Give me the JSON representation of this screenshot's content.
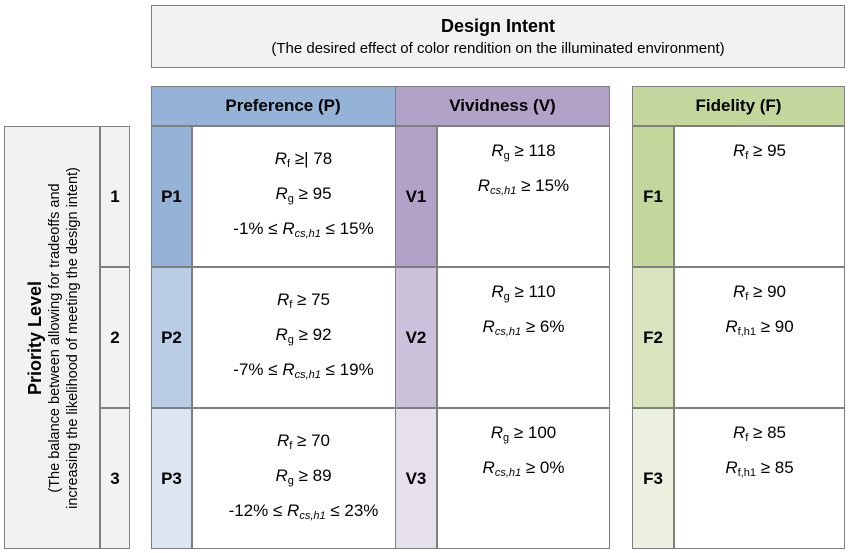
{
  "design_intent": {
    "title": "Design Intent",
    "subtitle": "(The desired effect of color rendition on the illuminated environment)"
  },
  "priority": {
    "title": "Priority Level",
    "subtitle_line1": "(The balance between allowing for tradeoffs and",
    "subtitle_line2": "increasing the likelihood of meeting the design intent)",
    "levels": [
      "1",
      "2",
      "3"
    ]
  },
  "colors": {
    "preference_header": "#95b3d7",
    "vividness_header": "#b3a2c7",
    "fidelity_header": "#c3d69b",
    "P1": "#95b3d7",
    "P2": "#b9cde5",
    "P3": "#dce6f2",
    "V1": "#b3a2c7",
    "V2": "#ccc1da",
    "V3": "#e6e0ec",
    "F1": "#c3d69b",
    "F2": "#d7e4bd",
    "F3": "#ebf1de"
  },
  "columns": [
    {
      "name": "Preference (P)",
      "rows": [
        {
          "code": "P1",
          "lines": [
            {
              "sym": "R",
              "sub": "f",
              "italic_sub": false,
              "rest": " ≥| 78"
            },
            {
              "sym": "R",
              "sub": "g",
              "italic_sub": false,
              "rest": " ≥ 95"
            },
            {
              "pre": "-1% ≤ ",
              "sym": "R",
              "sub": "cs,h1",
              "italic_sub": true,
              "rest": " ≤ 15%"
            }
          ]
        },
        {
          "code": "P2",
          "lines": [
            {
              "sym": "R",
              "sub": "f",
              "italic_sub": false,
              "rest": " ≥ 75"
            },
            {
              "sym": "R",
              "sub": "g",
              "italic_sub": false,
              "rest": " ≥ 92"
            },
            {
              "pre": "-7% ≤ ",
              "sym": "R",
              "sub": "cs,h1",
              "italic_sub": true,
              "rest": " ≤ 19%"
            }
          ]
        },
        {
          "code": "P3",
          "lines": [
            {
              "sym": "R",
              "sub": "f",
              "italic_sub": false,
              "rest": " ≥ 70"
            },
            {
              "sym": "R",
              "sub": "g",
              "italic_sub": false,
              "rest": " ≥ 89"
            },
            {
              "pre": "-12% ≤ ",
              "sym": "R",
              "sub": "cs,h1",
              "italic_sub": true,
              "rest": " ≤ 23%"
            }
          ]
        }
      ]
    },
    {
      "name": "Vividness (V)",
      "rows": [
        {
          "code": "V1",
          "lines": [
            {
              "sym": "R",
              "sub": "g",
              "italic_sub": false,
              "rest": " ≥ 118"
            },
            {
              "sym": "R",
              "sub": "cs,h1",
              "italic_sub": true,
              "rest": " ≥ 15%"
            }
          ]
        },
        {
          "code": "V2",
          "lines": [
            {
              "sym": "R",
              "sub": "g",
              "italic_sub": false,
              "rest": " ≥ 110"
            },
            {
              "sym": "R",
              "sub": "cs,h1",
              "italic_sub": true,
              "rest": " ≥ 6%"
            }
          ]
        },
        {
          "code": "V3",
          "lines": [
            {
              "sym": "R",
              "sub": "g",
              "italic_sub": false,
              "rest": " ≥ 100"
            },
            {
              "sym": "R",
              "sub": "cs,h1",
              "italic_sub": true,
              "rest": " ≥ 0%"
            }
          ]
        }
      ]
    },
    {
      "name": "Fidelity (F)",
      "rows": [
        {
          "code": "F1",
          "lines": [
            {
              "sym": "R",
              "sub": "f",
              "italic_sub": false,
              "rest": " ≥ 95"
            }
          ]
        },
        {
          "code": "F2",
          "lines": [
            {
              "sym": "R",
              "sub": "f",
              "italic_sub": false,
              "rest": " ≥ 90"
            },
            {
              "sym": "R",
              "sub": "f,h1",
              "italic_sub": false,
              "rest": " ≥ 90"
            }
          ]
        },
        {
          "code": "F3",
          "lines": [
            {
              "sym": "R",
              "sub": "f",
              "italic_sub": false,
              "rest": " ≥ 85"
            },
            {
              "sym": "R",
              "sub": "f,h1",
              "italic_sub": false,
              "rest": " ≥ 85"
            }
          ]
        }
      ]
    }
  ]
}
